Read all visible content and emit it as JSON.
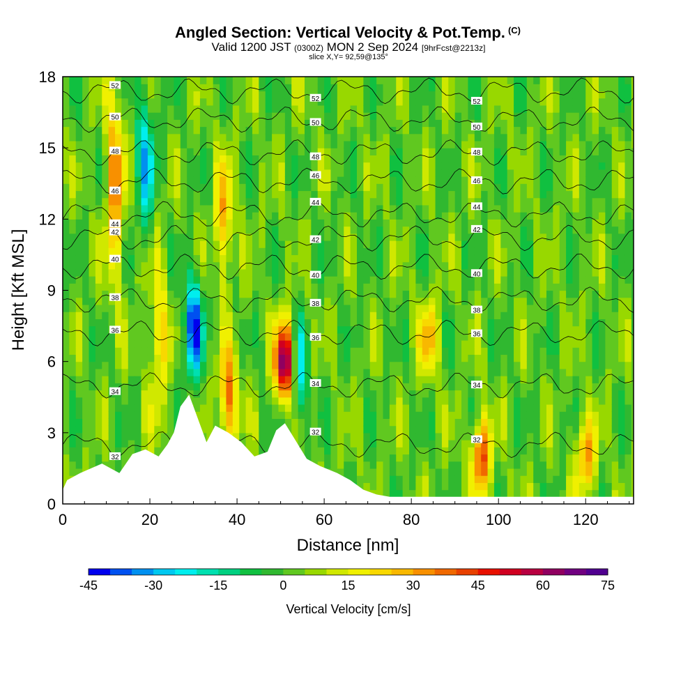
{
  "header": {
    "title": "Angled Section: Vertical Velocity & Pot.Temp.",
    "title_suffix": "(C)",
    "valid_main": "Valid 1200 JST",
    "valid_utc": "(0300Z)",
    "valid_date": "MON 2 Sep 2024",
    "valid_fcst": "[9hrFcst@2213z]",
    "slice": "slice X,Y= 92,59@135°"
  },
  "chart_data": {
    "type": "heatmap",
    "title": "Angled Section: Vertical Velocity & Pot.Temp.",
    "xlabel": "Distance [nm]",
    "ylabel": "Height [Kft MSL]",
    "xlim": [
      0,
      131
    ],
    "ylim": [
      0,
      18
    ],
    "x_ticks": [
      0,
      20,
      40,
      60,
      80,
      100,
      120
    ],
    "y_ticks": [
      0,
      3,
      6,
      9,
      12,
      15,
      18
    ],
    "x_tick_labels": [
      "0",
      "20",
      "40",
      "60",
      "80",
      "100",
      "120"
    ],
    "y_tick_labels": [
      "0",
      "3",
      "6",
      "9",
      "12",
      "15",
      "18"
    ],
    "colorbar": {
      "title": "Vertical Velocity [cm/s]",
      "min": -45,
      "max": 75,
      "step": 5,
      "tick_values": [
        -45,
        -30,
        -15,
        0,
        15,
        30,
        45,
        60,
        75
      ],
      "tick_labels": [
        "-45",
        "-30",
        "-15",
        "0",
        "15",
        "30",
        "45",
        "60",
        "75"
      ],
      "colors": [
        "#0000ee",
        "#0050f0",
        "#0090f0",
        "#00c8f0",
        "#00eeee",
        "#00e0b0",
        "#00d080",
        "#10c040",
        "#30b830",
        "#60c820",
        "#98d800",
        "#d0e800",
        "#f0f000",
        "#f8d800",
        "#f8b800",
        "#f89000",
        "#f06800",
        "#e84000",
        "#e81000",
        "#d00020",
        "#b80040",
        "#900060",
        "#700080",
        "#500090"
      ]
    },
    "theta_contour_levels": [
      32,
      34,
      36,
      38,
      40,
      42,
      44,
      46,
      48,
      50,
      52
    ],
    "theta_profile_at_x0": [
      {
        "level": 32,
        "height": 2.5
      },
      {
        "level": 34,
        "height": 5.0
      },
      {
        "level": 36,
        "height": 7.2
      },
      {
        "level": 38,
        "height": 8.6
      },
      {
        "level": 40,
        "height": 10.0
      },
      {
        "level": 42,
        "height": 11.2
      },
      {
        "level": 44,
        "height": 12.2
      },
      {
        "level": 46,
        "height": 13.6
      },
      {
        "level": 48,
        "height": 14.8
      },
      {
        "level": 50,
        "height": 16.2
      },
      {
        "level": 52,
        "height": 17.4
      }
    ],
    "vertical_velocity_features": [
      {
        "x": 12,
        "z_range": [
          10,
          17
        ],
        "w": 30
      },
      {
        "x": 19,
        "z_range": [
          12,
          17
        ],
        "w": -25
      },
      {
        "x": 22,
        "z_range": [
          4,
          10
        ],
        "w": 20
      },
      {
        "x": 30,
        "z_range": [
          6,
          9
        ],
        "w": -40
      },
      {
        "x": 37,
        "z_range": [
          10,
          14
        ],
        "w": 25
      },
      {
        "x": 38,
        "z_range": [
          3,
          6
        ],
        "w": 35
      },
      {
        "x": 51,
        "z_range": [
          5,
          7
        ],
        "w": 70
      },
      {
        "x": 54,
        "z_range": [
          4,
          7
        ],
        "w": -25
      },
      {
        "x": 84,
        "z_range": [
          6,
          8
        ],
        "w": 25
      },
      {
        "x": 96,
        "z_range": [
          1,
          3
        ],
        "w": 40
      },
      {
        "x": 120,
        "z_range": [
          1,
          3
        ],
        "w": 30
      }
    ],
    "terrain": [
      {
        "x": 0,
        "z": 0.6
      },
      {
        "x": 1,
        "z": 1.0
      },
      {
        "x": 4,
        "z": 1.3
      },
      {
        "x": 9,
        "z": 1.7
      },
      {
        "x": 13,
        "z": 1.3
      },
      {
        "x": 16,
        "z": 2.1
      },
      {
        "x": 19,
        "z": 2.3
      },
      {
        "x": 22,
        "z": 2.0
      },
      {
        "x": 24,
        "z": 2.5
      },
      {
        "x": 25.5,
        "z": 3.0
      },
      {
        "x": 27,
        "z": 4.1
      },
      {
        "x": 29,
        "z": 4.6
      },
      {
        "x": 31,
        "z": 3.6
      },
      {
        "x": 33,
        "z": 2.6
      },
      {
        "x": 35,
        "z": 3.3
      },
      {
        "x": 38,
        "z": 3.0
      },
      {
        "x": 41,
        "z": 2.6
      },
      {
        "x": 44,
        "z": 2.0
      },
      {
        "x": 47,
        "z": 2.2
      },
      {
        "x": 49,
        "z": 3.1
      },
      {
        "x": 51,
        "z": 3.4
      },
      {
        "x": 53,
        "z": 2.8
      },
      {
        "x": 56,
        "z": 1.9
      },
      {
        "x": 59,
        "z": 1.6
      },
      {
        "x": 63,
        "z": 1.3
      },
      {
        "x": 66,
        "z": 1.0
      },
      {
        "x": 69,
        "z": 0.6
      },
      {
        "x": 72,
        "z": 0.4
      },
      {
        "x": 75,
        "z": 0.3
      },
      {
        "x": 131,
        "z": 0.3
      }
    ]
  }
}
